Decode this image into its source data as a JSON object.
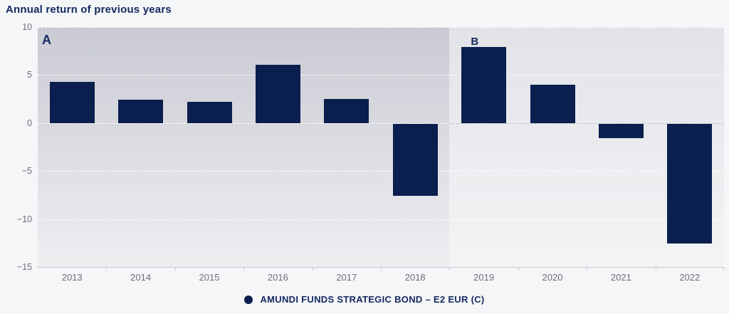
{
  "title": "Annual return of previous years",
  "legend": {
    "label": "AMUNDI FUNDS STRATEGIC BOND – E2 EUR (C)",
    "marker": "filled-circle"
  },
  "colors": {
    "bar": "#0a1f4e",
    "navy_text": "#152a60",
    "axis_text": "#6e6f76",
    "gridline": "#ffffff",
    "zero_line_on_light": "#bfc0c8",
    "axis_line": "#c7c8ce",
    "page_background": "#f5f6f8"
  },
  "chart_data": {
    "type": "bar",
    "title": "Annual return of previous years",
    "xlabel": "",
    "ylabel": "",
    "categories": [
      "2013",
      "2014",
      "2015",
      "2016",
      "2017",
      "2018",
      "2019",
      "2020",
      "2021",
      "2022"
    ],
    "values": [
      4.3,
      2.4,
      2.2,
      6.1,
      2.5,
      -7.5,
      7.9,
      4.0,
      -1.5,
      -12.5
    ],
    "series_name": "AMUNDI FUNDS STRATEGIC BOND – E2 EUR (C)",
    "ylim": [
      -15,
      10
    ],
    "yticks": [
      {
        "value": 10,
        "label": "10"
      },
      {
        "value": 5,
        "label": "5"
      },
      {
        "value": 0,
        "label": "0"
      },
      {
        "value": -5,
        "label": "−5"
      },
      {
        "value": -10,
        "label": "−10"
      },
      {
        "value": -15,
        "label": "−15"
      }
    ],
    "grid": "horizontal-dashed",
    "legend_position": "bottom-center",
    "regions": [
      {
        "label": "A",
        "from": "2013",
        "to": "2018",
        "gradient_top": "#c9cad3",
        "gradient_bottom": "#efeff2"
      },
      {
        "label": "B",
        "from": "2019",
        "to": "2022",
        "gradient_top": "#e2e3e8",
        "gradient_bottom": "#f4f4f6"
      }
    ]
  }
}
